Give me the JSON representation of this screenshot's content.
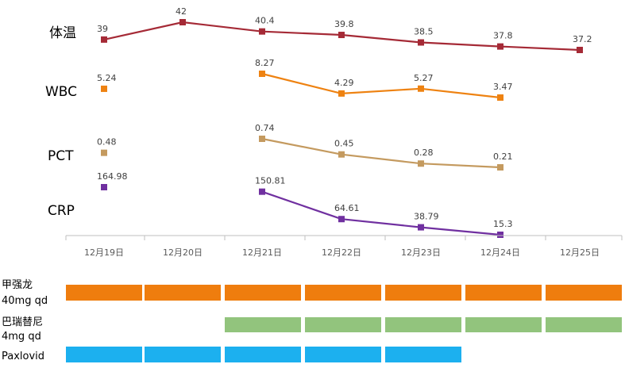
{
  "chart_data": {
    "type": "line",
    "categories": [
      "12月19日",
      "12月20日",
      "12月21日",
      "12月22日",
      "12月23日",
      "12月24日",
      "12月25日"
    ],
    "series": [
      {
        "name": "体温",
        "color": "#a52a36",
        "values": [
          39,
          42,
          40.4,
          39.8,
          38.5,
          37.8,
          37.2
        ],
        "labels": [
          "39",
          "42",
          "40.4",
          "39.8",
          "38.5",
          "37.8",
          "37.2"
        ]
      },
      {
        "name": "WBC",
        "color": "#ee8211",
        "values": [
          5.24,
          null,
          8.27,
          4.29,
          5.27,
          3.47,
          null
        ],
        "labels": [
          "5.24",
          null,
          "8.27",
          "4.29",
          "5.27",
          "3.47",
          null
        ]
      },
      {
        "name": "PCT",
        "color": "#c49a5f",
        "values": [
          0.48,
          null,
          0.74,
          0.45,
          0.28,
          0.21,
          null
        ],
        "labels": [
          "0.48",
          null,
          "0.74",
          "0.45",
          "0.28",
          "0.21",
          null
        ]
      },
      {
        "name": "CRP",
        "color": "#7030a0",
        "values": [
          164.98,
          null,
          150.81,
          64.61,
          38.79,
          15.3,
          null
        ],
        "labels": [
          "164.98",
          null,
          "150.81",
          "64.61",
          "38.79",
          "15.3",
          null
        ]
      }
    ],
    "medications": [
      {
        "name_line1": "甲强龙",
        "name_line2": "40mg qd",
        "color": "#ef7d0e",
        "active": [
          true,
          true,
          true,
          true,
          true,
          true,
          true
        ]
      },
      {
        "name_line1": "巴瑞替尼",
        "name_line2": "4mg qd",
        "color": "#92c47d",
        "active": [
          false,
          false,
          true,
          true,
          true,
          true,
          true
        ]
      },
      {
        "name_line1": "Paxlovid",
        "name_line2": "",
        "color": "#1cb0ef",
        "active": [
          true,
          true,
          true,
          true,
          true,
          false,
          false
        ]
      }
    ]
  }
}
